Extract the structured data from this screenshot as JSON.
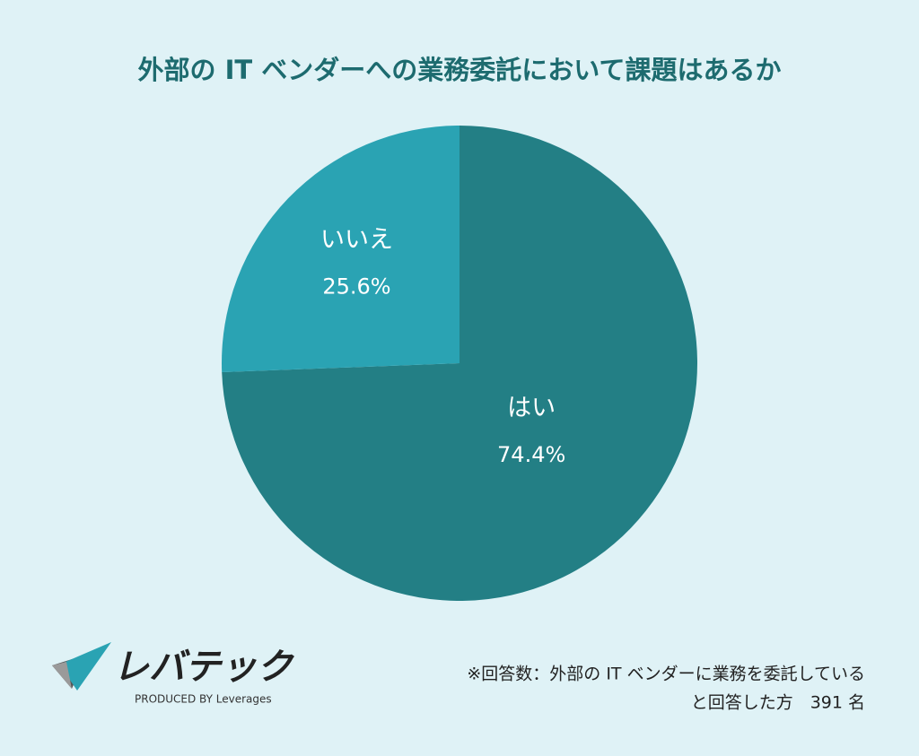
{
  "chart_data": {
    "type": "pie",
    "title": "外部の IT ベンダーへの業務委託において課題はあるか",
    "categories": [
      "はい",
      "いいえ"
    ],
    "values": [
      74.4,
      25.6
    ],
    "value_labels": [
      "74.4%",
      "25.6%"
    ],
    "colors": [
      "#237f85",
      "#2aa3b3"
    ],
    "note": [
      "※回答数：外部の IT ベンダーに業務を委託している",
      "と回答した方　391 名"
    ]
  },
  "logo": {
    "name": "レバテック",
    "tagline": "PRODUCED BY Leverages"
  }
}
